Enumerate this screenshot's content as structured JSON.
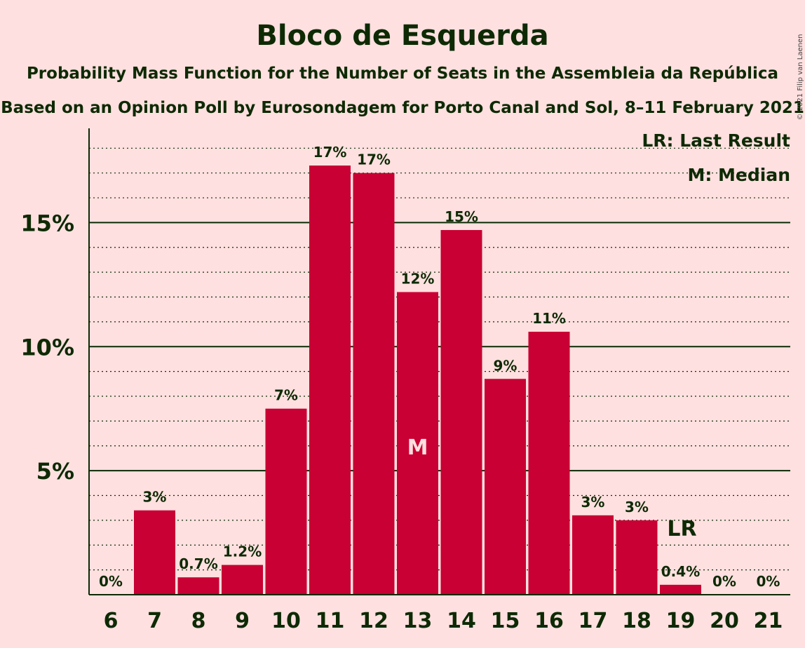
{
  "chart_data": {
    "type": "bar",
    "title": "Bloco de Esquerda",
    "subtitle": "Probability Mass Function for the Number of Seats in the Assembleia da República",
    "subtitle2": "Based on an Opinion Poll by Eurosondagem for Porto Canal and Sol, 8–11 February 2021",
    "copyright": "© 2021 Filip van Laenen",
    "legend": {
      "lr": "LR: Last Result",
      "m": "M: Median",
      "placement": "top-right"
    },
    "categories": [
      "6",
      "7",
      "8",
      "9",
      "10",
      "11",
      "12",
      "13",
      "14",
      "15",
      "16",
      "17",
      "18",
      "19",
      "20",
      "21"
    ],
    "values": [
      0,
      3.4,
      0.7,
      1.2,
      7.5,
      17.3,
      17.0,
      12.2,
      14.7,
      8.7,
      10.6,
      3.2,
      3.0,
      0.4,
      0,
      0
    ],
    "value_labels": [
      "0%",
      "3%",
      "0.7%",
      "1.2%",
      "7%",
      "17%",
      "17%",
      "12%",
      "15%",
      "9%",
      "11%",
      "3%",
      "3%",
      "0.4%",
      "0%",
      "0%"
    ],
    "yticks": [
      {
        "value": 5,
        "label": "5%"
      },
      {
        "value": 10,
        "label": "10%"
      },
      {
        "value": 15,
        "label": "15%"
      }
    ],
    "ylim": [
      0,
      18.8
    ],
    "median_seat": "13",
    "median_marker": "M",
    "last_result_seat": "19",
    "last_result_marker": "LR",
    "colors": {
      "bar": "#c80033",
      "background": "#ffe0e0",
      "text": "#0d2a04"
    },
    "grid": true
  }
}
